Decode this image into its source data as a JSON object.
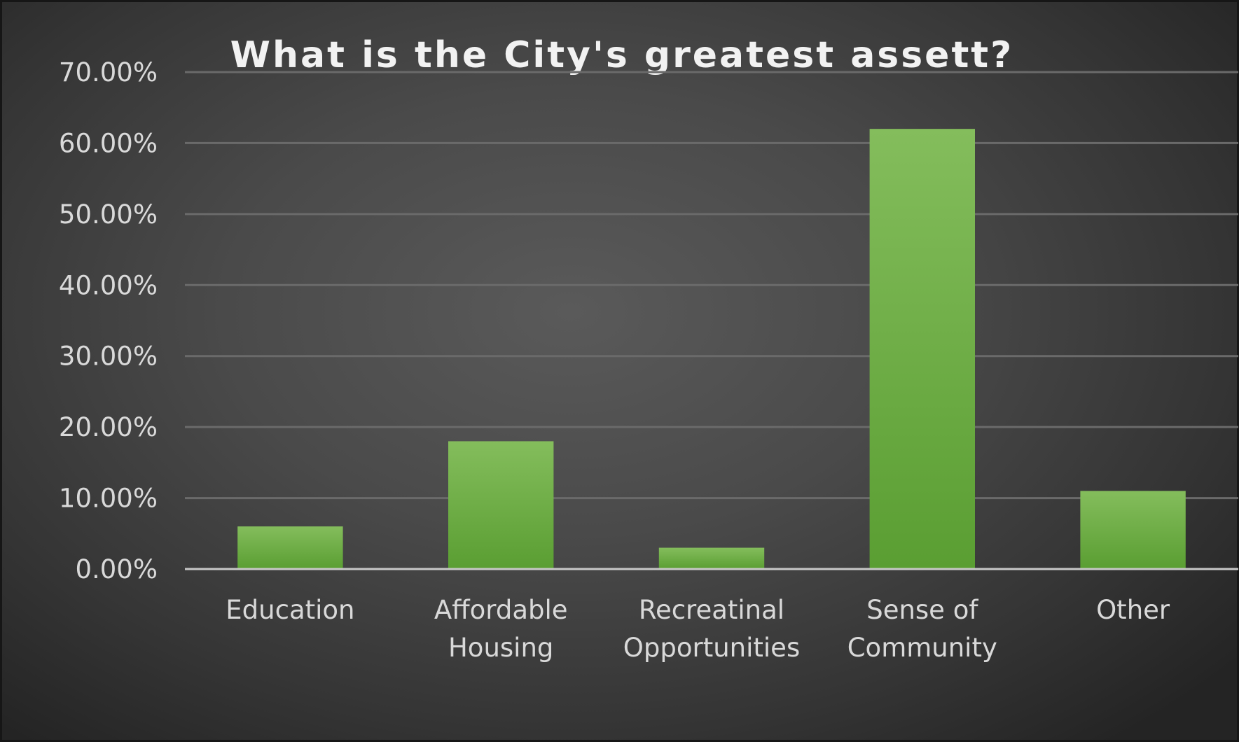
{
  "chart_data": {
    "type": "bar",
    "title": "What is the City's greatest assett?",
    "xlabel": "",
    "ylabel": "",
    "categories": [
      [
        "Education"
      ],
      [
        "Affordable",
        "Housing"
      ],
      [
        "Recreatinal",
        "Opportunities"
      ],
      [
        "Sense of",
        "Community"
      ],
      [
        "Other"
      ]
    ],
    "values": [
      6.0,
      18.0,
      3.0,
      62.0,
      11.0
    ],
    "ylim": [
      0,
      70
    ],
    "yticks": [
      0,
      10,
      20,
      30,
      40,
      50,
      60,
      70
    ],
    "ytick_labels": [
      "0.00%",
      "10.00%",
      "20.00%",
      "30.00%",
      "40.00%",
      "50.00%",
      "60.00%",
      "70.00%"
    ],
    "grid": true,
    "legend": "none",
    "colors": {
      "bar_top": "#84bd5c",
      "bar_bottom": "#5a9e32",
      "background": "#4a4a4a"
    }
  }
}
